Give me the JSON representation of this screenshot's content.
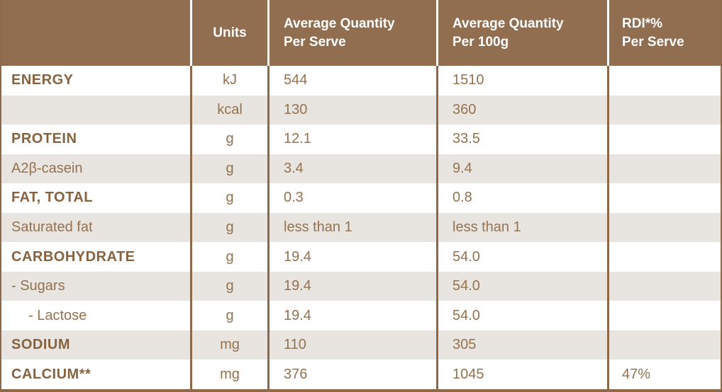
{
  "colors": {
    "header_bg": "#916E50",
    "header_text": "#FFFFFF",
    "row_bg": "#FFFFFF",
    "row_alt_bg": "#E8E5E1",
    "text": "#95724F",
    "text_bold": "#87623F",
    "border": "#8D6949"
  },
  "table": {
    "columns": [
      {
        "line1": "",
        "line2": ""
      },
      {
        "line1": "Units",
        "line2": ""
      },
      {
        "line1": "Average Quantity",
        "line2": "Per Serve"
      },
      {
        "line1": "Average Quantity",
        "line2": "Per 100g"
      },
      {
        "line1": "RDI*%",
        "line2": "Per Serve"
      }
    ],
    "rows": [
      {
        "name": "ENERGY",
        "bold": true,
        "indent": 0,
        "units": "kJ",
        "per_serve": "544",
        "per_100g": "1510",
        "rdi": ""
      },
      {
        "name": "",
        "bold": false,
        "indent": 0,
        "units": "kcal",
        "per_serve": "130",
        "per_100g": "360",
        "rdi": ""
      },
      {
        "name": "PROTEIN",
        "bold": true,
        "indent": 0,
        "units": "g",
        "per_serve": "12.1",
        "per_100g": "33.5",
        "rdi": ""
      },
      {
        "name": "A2β-casein",
        "bold": false,
        "indent": 0,
        "units": "g",
        "per_serve": "3.4",
        "per_100g": "9.4",
        "rdi": ""
      },
      {
        "name": "FAT, TOTAL",
        "bold": true,
        "indent": 0,
        "units": "g",
        "per_serve": "0.3",
        "per_100g": "0.8",
        "rdi": ""
      },
      {
        "name": "Saturated fat",
        "bold": false,
        "indent": 0,
        "units": "g",
        "per_serve": "less than 1",
        "per_100g": "less than 1",
        "rdi": ""
      },
      {
        "name": "CARBOHYDRATE",
        "bold": true,
        "indent": 0,
        "units": "g",
        "per_serve": "19.4",
        "per_100g": "54.0",
        "rdi": ""
      },
      {
        "name": "- Sugars",
        "bold": false,
        "indent": 0,
        "units": "g",
        "per_serve": "19.4",
        "per_100g": "54.0",
        "rdi": ""
      },
      {
        "name": "- Lactose",
        "bold": false,
        "indent": 1,
        "units": "g",
        "per_serve": "19.4",
        "per_100g": "54.0",
        "rdi": ""
      },
      {
        "name": "SODIUM",
        "bold": true,
        "indent": 0,
        "units": "mg",
        "per_serve": "110",
        "per_100g": "305",
        "rdi": ""
      },
      {
        "name": "CALCIUM**",
        "bold": true,
        "indent": 0,
        "units": "mg",
        "per_serve": "376",
        "per_100g": "1045",
        "rdi": "47%"
      }
    ]
  }
}
